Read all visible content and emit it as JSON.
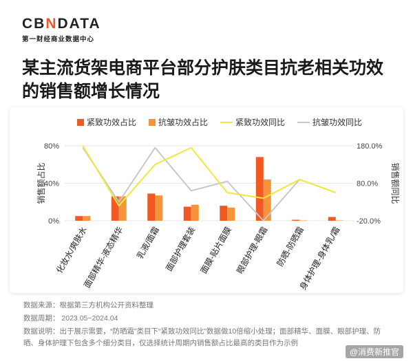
{
  "brand": {
    "logo_left": "CB",
    "logo_x": "N",
    "logo_right": "DATA",
    "subtitle": "第一财经商业数据中心"
  },
  "title": "某主流货架电商平台部分护肤类目抗老相关功效的销售额增长情况",
  "notes": {
    "source": "数据来源：根据第三方机构公开资料整理",
    "period": "数据周期： 2023.05~2024.04",
    "explain": "数据说明：出于展示需要，“防晒霜”类目下“紧致功效同比”数据做10倍缩小处理；面部精华、面膜、眼部护理、防晒、身体护理下包含多个细分类目，仅选择统计周期内销售额占比最高的类目作为示例"
  },
  "watermark": "@消费新推官",
  "colors": {
    "bar1": "#f05a22",
    "bar2": "#f6943a",
    "line1": "#f2e73a",
    "line2": "#c8c8c8",
    "grid": "#e6e6e6"
  },
  "chart_data": {
    "type": "bar",
    "categories": [
      "化妆水/爽肤水",
      "面部精华-液态精华",
      "乳液/面霜",
      "面部护理套装",
      "面膜-贴片面膜",
      "眼部护理-眼霜",
      "防晒-防晒霜",
      "身体护理-身体乳/霜"
    ],
    "series": [
      {
        "name": "紧致功效占比",
        "type": "bar",
        "axis": "left",
        "values": [
          5,
          26,
          29,
          15,
          16,
          68,
          1,
          4
        ]
      },
      {
        "name": "抗皱功效占比",
        "type": "bar",
        "axis": "left",
        "values": [
          5,
          26,
          27,
          17,
          14,
          44,
          0,
          0
        ]
      },
      {
        "name": "紧致功效同比",
        "type": "line",
        "axis": "right",
        "values": [
          180,
          20,
          130,
          175,
          55,
          40,
          90,
          55
        ]
      },
      {
        "name": "抗皱功效同比",
        "type": "line",
        "axis": "right",
        "values": [
          175,
          30,
          175,
          60,
          85,
          -20,
          90,
          null
        ]
      }
    ],
    "left_axis": {
      "label": "销售额占比",
      "ticks": [
        "0%",
        "40%",
        "80%"
      ],
      "range": [
        0,
        80
      ]
    },
    "right_axis": {
      "label": "销售额同比",
      "ticks": [
        "-20.0%",
        "80.0%",
        "180.0%"
      ],
      "range": [
        -20,
        180
      ]
    },
    "legend_position": "top"
  }
}
